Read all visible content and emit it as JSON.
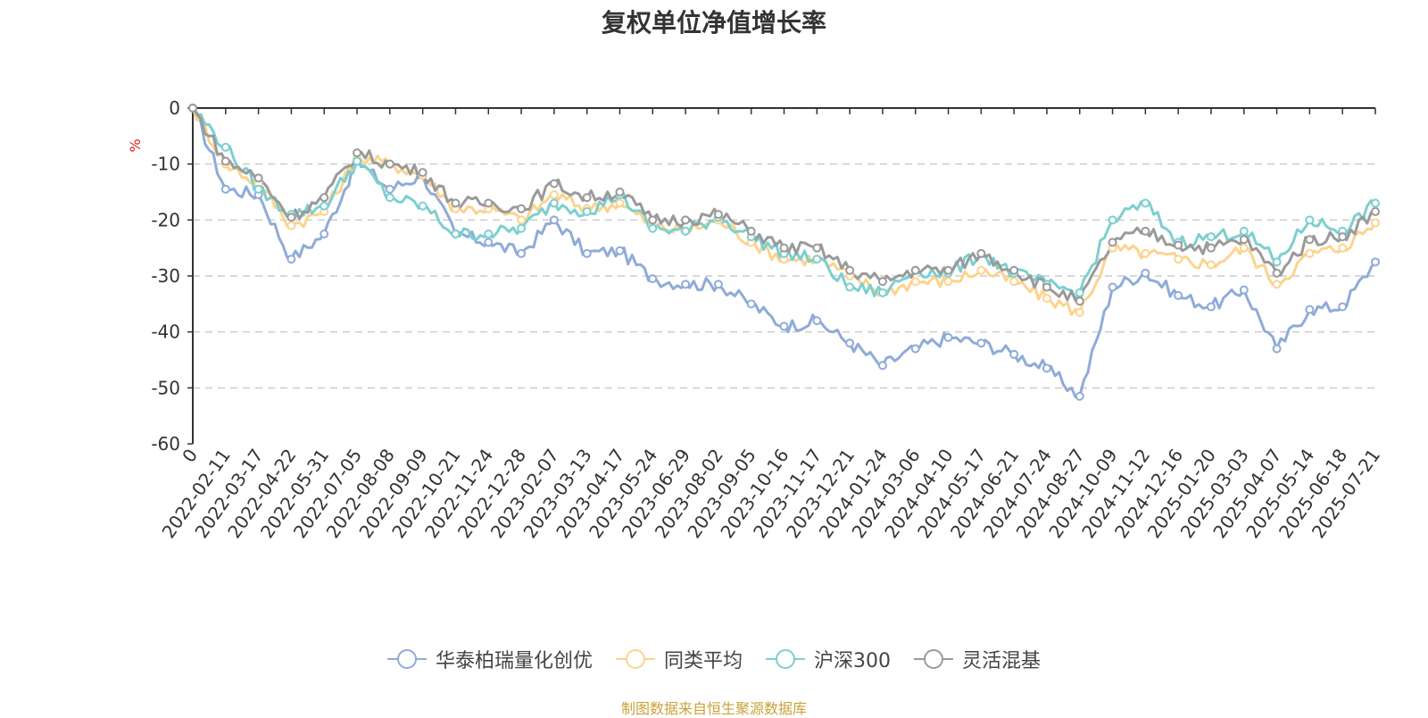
{
  "chart_data": {
    "type": "line",
    "title": "复权单位净值增长率",
    "ylabel": "%",
    "ylim": [
      -60,
      0
    ],
    "yticks": [
      0,
      -10,
      -20,
      -30,
      -40,
      -50,
      -60
    ],
    "grid": true,
    "legend_position": "bottom",
    "categories": [
      "0",
      "2022-02-11",
      "2022-03-17",
      "2022-04-22",
      "2022-05-31",
      "2022-07-05",
      "2022-08-08",
      "2022-09-09",
      "2022-10-21",
      "2022-11-24",
      "2022-12-28",
      "2023-02-07",
      "2023-03-13",
      "2023-04-17",
      "2023-05-24",
      "2023-06-29",
      "2023-08-02",
      "2023-09-05",
      "2023-10-16",
      "2023-11-17",
      "2023-12-21",
      "2024-01-24",
      "2024-03-06",
      "2024-04-10",
      "2024-05-17",
      "2024-06-21",
      "2024-07-24",
      "2024-08-27",
      "2024-10-09",
      "2024-11-12",
      "2024-12-16",
      "2025-01-20",
      "2025-03-03",
      "2025-04-07",
      "2025-05-14",
      "2025-06-18",
      "2025-07-21"
    ],
    "series": [
      {
        "name": "华泰柏瑞量化创优",
        "color": "#8fabd9",
        "values": [
          0,
          -14.5,
          -15.5,
          -27,
          -22.5,
          -9.5,
          -14.5,
          -12,
          -22.5,
          -24,
          -26,
          -20,
          -26,
          -25.5,
          -30.5,
          -31.5,
          -31.5,
          -35,
          -39,
          -38,
          -42,
          -46,
          -43,
          -41,
          -42,
          -44,
          -46.5,
          -51.5,
          -32,
          -29.5,
          -33.5,
          -35.5,
          -32.5,
          -43,
          -36,
          -35.5,
          -27.5
        ]
      },
      {
        "name": "同类平均",
        "color": "#fcd38e",
        "values": [
          0,
          -10,
          -13.5,
          -21,
          -18.5,
          -9,
          -10,
          -12,
          -18,
          -18,
          -20,
          -15.5,
          -18,
          -17,
          -21,
          -22,
          -20,
          -24,
          -27,
          -27,
          -30,
          -33,
          -31,
          -31,
          -29,
          -31,
          -34,
          -36.5,
          -25,
          -26,
          -27,
          -28,
          -25,
          -31.5,
          -26,
          -25,
          -20.5
        ]
      },
      {
        "name": "沪深300",
        "color": "#7dcfcf",
        "values": [
          0,
          -7,
          -14.5,
          -19,
          -17.5,
          -9.5,
          -16,
          -17.5,
          -22.5,
          -22.5,
          -21.5,
          -17,
          -18.5,
          -15.5,
          -21.5,
          -22,
          -19.5,
          -23,
          -26,
          -27,
          -32,
          -33,
          -29,
          -29.5,
          -26,
          -29.5,
          -31.5,
          -33,
          -20,
          -17,
          -24,
          -23,
          -22,
          -27.5,
          -20,
          -22,
          -17
        ]
      },
      {
        "name": "灵活混基",
        "color": "#9a9a9a",
        "values": [
          0,
          -9.5,
          -12.5,
          -19.5,
          -16,
          -8,
          -10,
          -11.5,
          -17,
          -17,
          -18,
          -13.5,
          -16,
          -15,
          -20,
          -20,
          -19,
          -22,
          -25,
          -25,
          -29,
          -31,
          -29,
          -29,
          -26,
          -29,
          -32,
          -34.5,
          -24,
          -22,
          -24.5,
          -25,
          -23.5,
          -29.5,
          -23.5,
          -23,
          -18.5
        ]
      }
    ]
  },
  "source_text": "制图数据来自恒生聚源数据库",
  "source_color": "#c9a23a"
}
